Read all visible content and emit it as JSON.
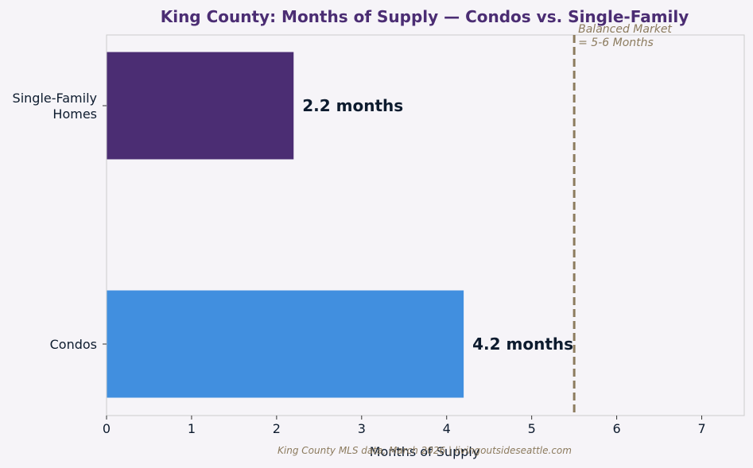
{
  "chart_data": {
    "type": "bar",
    "orientation": "horizontal",
    "title": "King County: Months of Supply — Condos vs. Single-Family",
    "xlabel": "Months of Supply",
    "ylabel": "",
    "xlim": [
      0,
      7.5
    ],
    "xticks": [
      "0",
      "1",
      "2",
      "3",
      "4",
      "5",
      "6",
      "7"
    ],
    "grid": false,
    "categories": [
      {
        "label_lines": [
          "Single-Family",
          "Homes"
        ]
      },
      {
        "label_lines": [
          "Condos"
        ]
      }
    ],
    "values": [
      2.2,
      4.2
    ],
    "value_labels": [
      "2.2 months",
      "4.2 months"
    ],
    "bar_colors": [
      "#4b2d73",
      "#418fdf"
    ],
    "reference_line": {
      "x": 5.5,
      "label_lines": [
        "Balanced Market",
        "= 5-6 Months"
      ],
      "color": "#8c7b5e"
    },
    "source": "King County MLS data, March 2026 | livingoutsideseattle.com"
  },
  "colors": {
    "title": "#4b2d73",
    "text": "#0d1b2e",
    "axis": "#cccccc",
    "background": "#f6f4f8",
    "source": "#8c7b5e"
  }
}
